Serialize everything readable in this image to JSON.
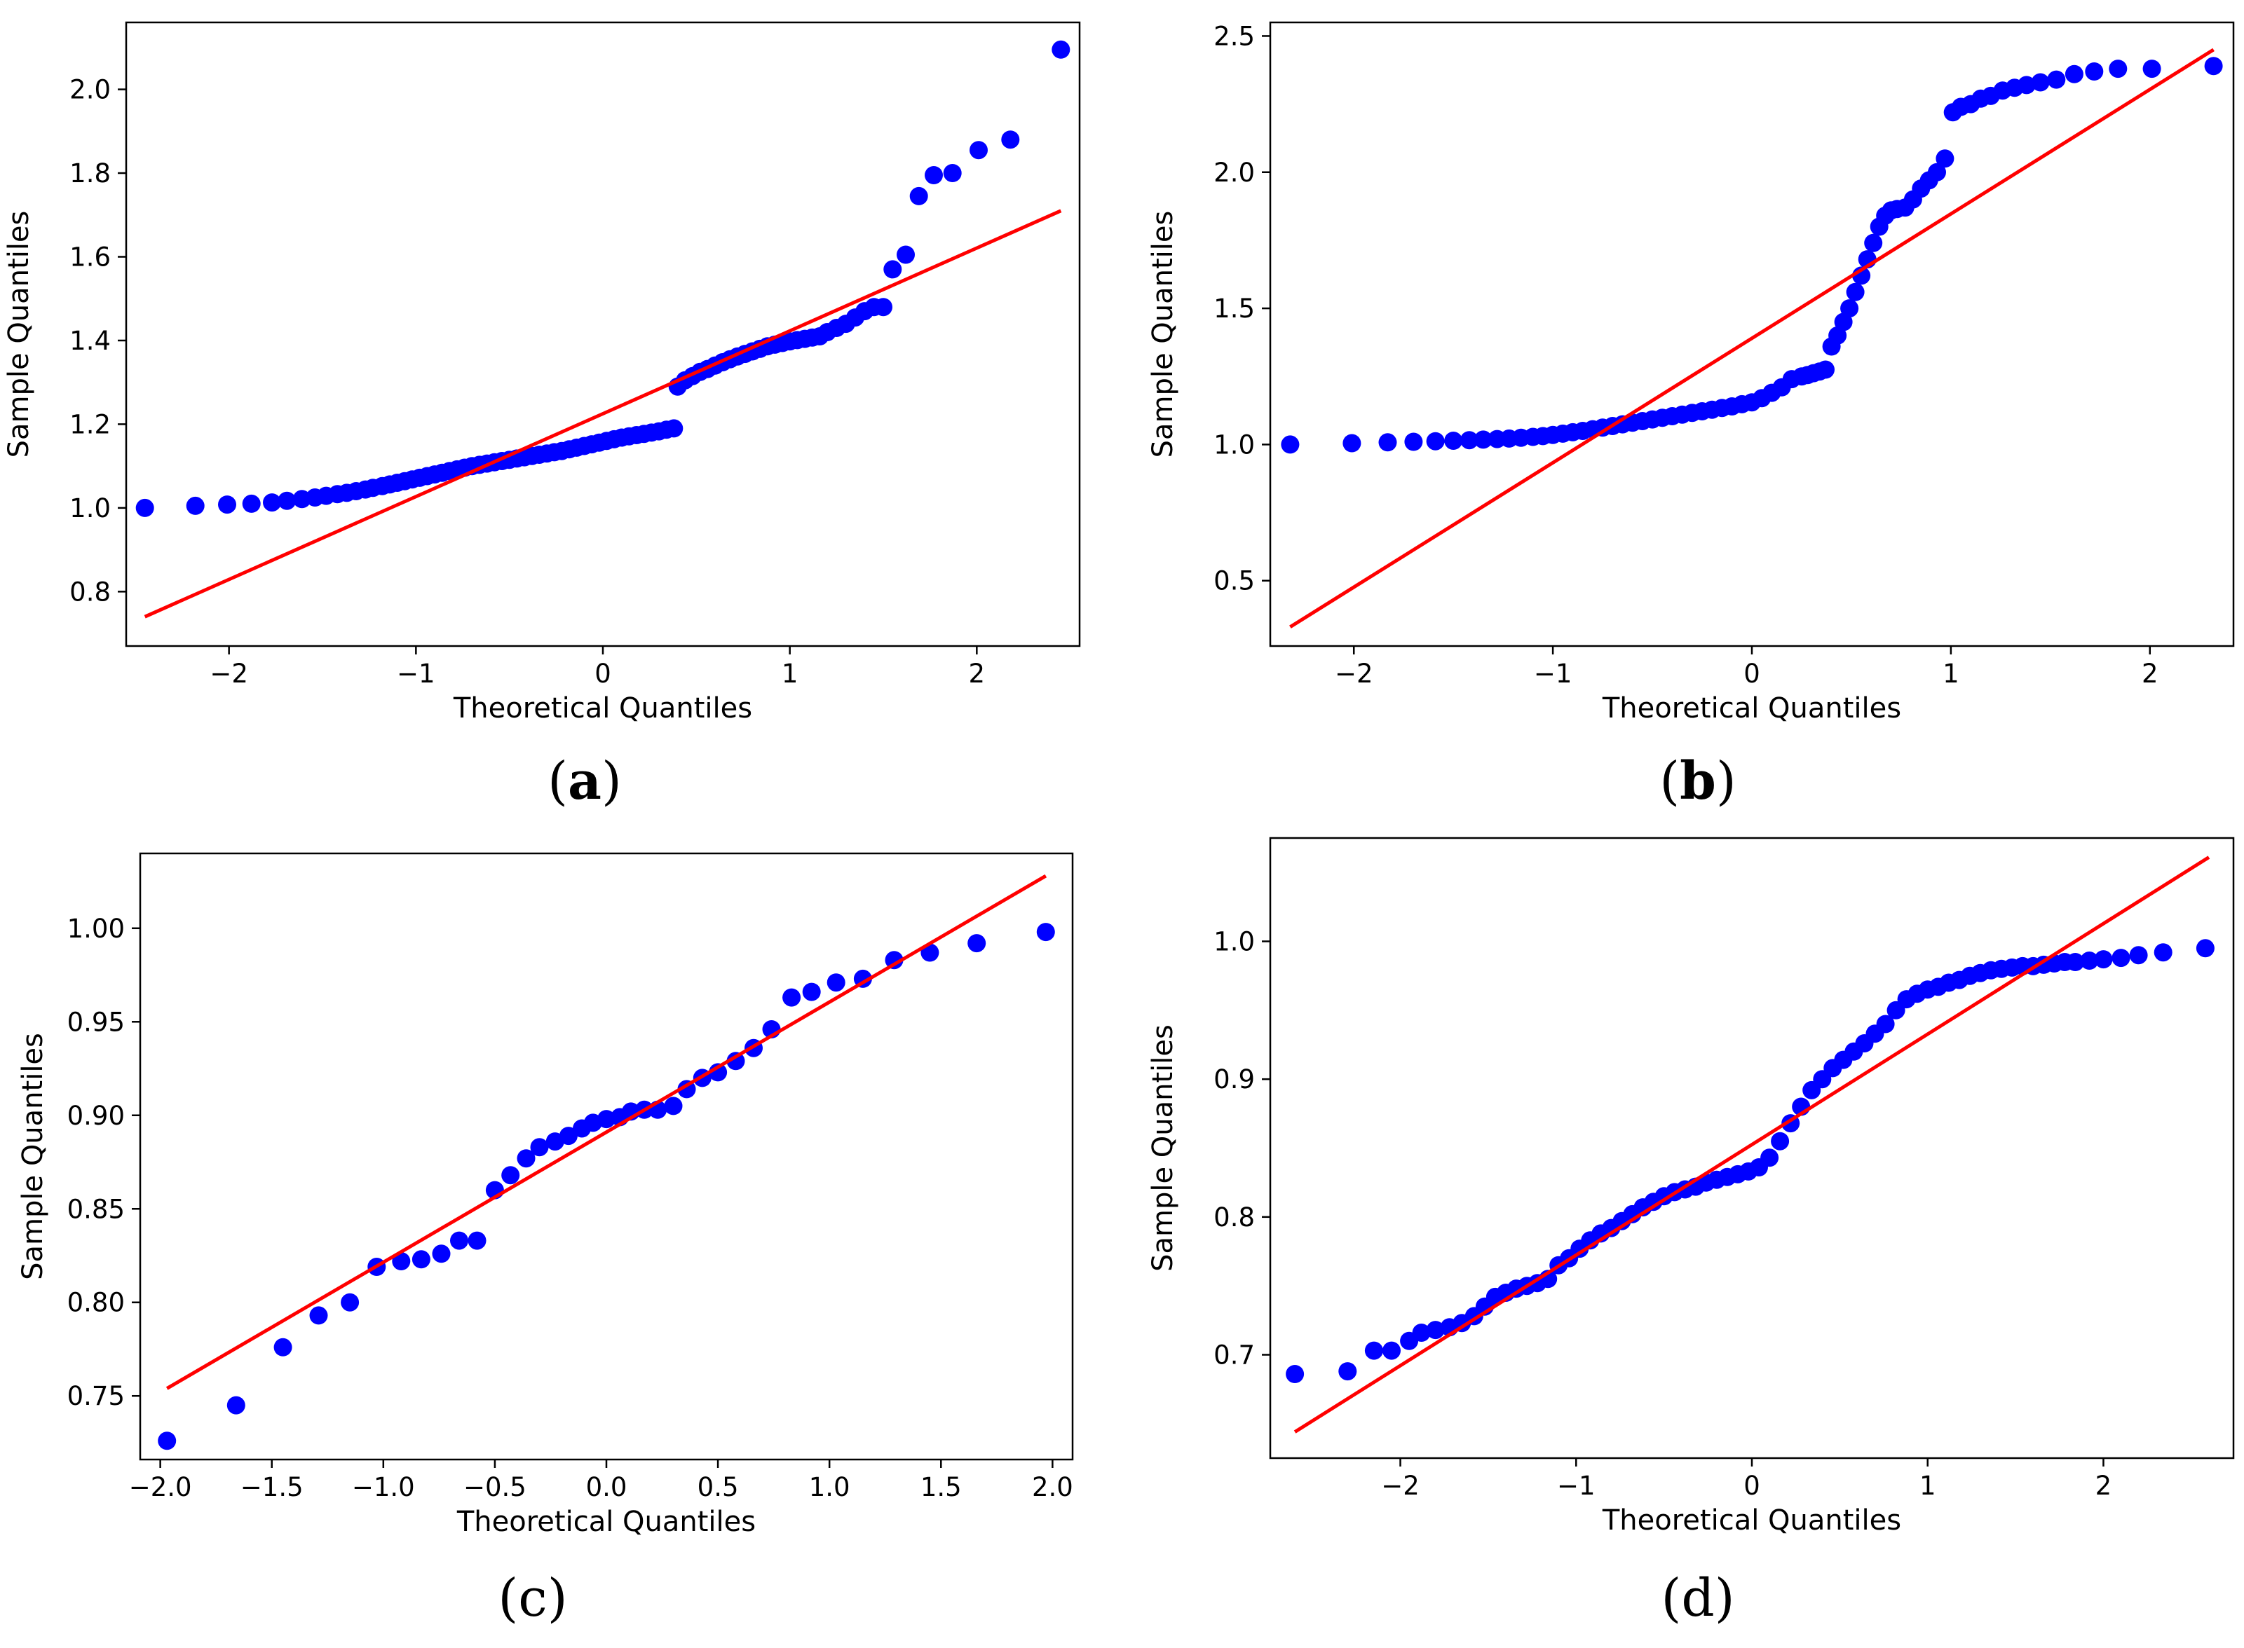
{
  "chart_data": [
    {
      "id": "a",
      "type": "scatter",
      "caption": "a",
      "xlabel": "Theoretical Quantiles",
      "ylabel": "Sample Quantiles",
      "xlim": [
        -2.55,
        2.55
      ],
      "ylim": [
        0.67,
        2.16
      ],
      "xticks": [
        -2,
        -1,
        0,
        1,
        2
      ],
      "xtick_labels": [
        "−2",
        "−1",
        "0",
        "1",
        "2"
      ],
      "yticks": [
        0.8,
        1.0,
        1.2,
        1.4,
        1.6,
        1.8,
        2.0
      ],
      "ytick_labels": [
        "0.8",
        "1.0",
        "1.2",
        "1.4",
        "1.6",
        "1.8",
        "2.0"
      ],
      "marker_color": "#0000ff",
      "line_color": "#ff0000",
      "ref_line": {
        "x": [
          -2.45,
          2.45
        ],
        "y": [
          0.74,
          1.71
        ]
      },
      "series": [
        {
          "name": "sample",
          "x": [
            -2.45,
            -2.18,
            -2.01,
            -1.88,
            -1.77,
            -1.69,
            -1.61,
            -1.54,
            -1.48,
            -1.42,
            -1.37,
            -1.32,
            -1.27,
            -1.23,
            -1.18,
            -1.14,
            -1.1,
            -1.06,
            -1.02,
            -0.98,
            -0.94,
            -0.9,
            -0.86,
            -0.82,
            -0.78,
            -0.74,
            -0.7,
            -0.66,
            -0.62,
            -0.58,
            -0.54,
            -0.5,
            -0.46,
            -0.42,
            -0.38,
            -0.34,
            -0.3,
            -0.26,
            -0.22,
            -0.18,
            -0.14,
            -0.1,
            -0.06,
            -0.02,
            0.02,
            0.06,
            0.1,
            0.14,
            0.18,
            0.22,
            0.26,
            0.3,
            0.34,
            0.38,
            0.4,
            0.44,
            0.48,
            0.52,
            0.56,
            0.6,
            0.64,
            0.68,
            0.72,
            0.76,
            0.8,
            0.84,
            0.88,
            0.92,
            0.96,
            1.0,
            1.04,
            1.08,
            1.12,
            1.16,
            1.2,
            1.25,
            1.3,
            1.35,
            1.4,
            1.45,
            1.5,
            1.55,
            1.62,
            1.69,
            1.77,
            1.87,
            2.01,
            2.18,
            2.45
          ],
          "y": [
            1.0,
            1.005,
            1.008,
            1.01,
            1.013,
            1.017,
            1.021,
            1.025,
            1.029,
            1.033,
            1.036,
            1.04,
            1.044,
            1.048,
            1.052,
            1.056,
            1.06,
            1.064,
            1.068,
            1.072,
            1.076,
            1.08,
            1.084,
            1.088,
            1.092,
            1.096,
            1.1,
            1.103,
            1.106,
            1.109,
            1.112,
            1.115,
            1.118,
            1.121,
            1.124,
            1.127,
            1.13,
            1.133,
            1.136,
            1.14,
            1.144,
            1.148,
            1.152,
            1.156,
            1.16,
            1.164,
            1.168,
            1.171,
            1.174,
            1.177,
            1.18,
            1.183,
            1.187,
            1.19,
            1.29,
            1.305,
            1.315,
            1.325,
            1.332,
            1.34,
            1.348,
            1.355,
            1.362,
            1.368,
            1.374,
            1.38,
            1.386,
            1.39,
            1.394,
            1.398,
            1.401,
            1.404,
            1.407,
            1.41,
            1.42,
            1.43,
            1.44,
            1.455,
            1.47,
            1.48,
            1.48,
            1.57,
            1.605,
            1.745,
            1.795,
            1.8,
            1.855,
            1.88,
            2.095
          ]
        }
      ]
    },
    {
      "id": "b",
      "type": "scatter",
      "caption": "b",
      "xlabel": "Theoretical Quantiles",
      "ylabel": "Sample Quantiles",
      "xlim": [
        -2.42,
        2.42
      ],
      "ylim": [
        0.26,
        2.55
      ],
      "xticks": [
        -2,
        -1,
        0,
        1,
        2
      ],
      "xtick_labels": [
        "−2",
        "−1",
        "0",
        "1",
        "2"
      ],
      "yticks": [
        0.5,
        1.0,
        1.5,
        2.0,
        2.5
      ],
      "ytick_labels": [
        "0.5",
        "1.0",
        "1.5",
        "2.0",
        "2.5"
      ],
      "marker_color": "#0000ff",
      "line_color": "#ff0000",
      "ref_line": {
        "x": [
          -2.32,
          2.32
        ],
        "y": [
          0.33,
          2.45
        ]
      },
      "series": [
        {
          "name": "sample",
          "x": [
            -2.32,
            -2.01,
            -1.83,
            -1.7,
            -1.59,
            -1.5,
            -1.42,
            -1.35,
            -1.28,
            -1.22,
            -1.16,
            -1.1,
            -1.05,
            -1.0,
            -0.95,
            -0.9,
            -0.85,
            -0.8,
            -0.75,
            -0.7,
            -0.65,
            -0.6,
            -0.55,
            -0.5,
            -0.45,
            -0.4,
            -0.35,
            -0.3,
            -0.25,
            -0.2,
            -0.15,
            -0.1,
            -0.05,
            0.0,
            0.05,
            0.1,
            0.15,
            0.2,
            0.25,
            0.28,
            0.31,
            0.34,
            0.37,
            0.4,
            0.43,
            0.46,
            0.49,
            0.52,
            0.55,
            0.58,
            0.61,
            0.64,
            0.67,
            0.7,
            0.73,
            0.77,
            0.81,
            0.85,
            0.89,
            0.93,
            0.97,
            1.01,
            1.05,
            1.1,
            1.15,
            1.2,
            1.26,
            1.32,
            1.38,
            1.45,
            1.53,
            1.62,
            1.72,
            1.84,
            2.01,
            2.32
          ],
          "y": [
            1.0,
            1.005,
            1.008,
            1.01,
            1.012,
            1.014,
            1.016,
            1.018,
            1.02,
            1.022,
            1.025,
            1.028,
            1.031,
            1.035,
            1.04,
            1.045,
            1.05,
            1.056,
            1.062,
            1.068,
            1.074,
            1.08,
            1.086,
            1.092,
            1.098,
            1.104,
            1.11,
            1.116,
            1.122,
            1.128,
            1.134,
            1.14,
            1.148,
            1.155,
            1.17,
            1.19,
            1.21,
            1.24,
            1.25,
            1.255,
            1.262,
            1.268,
            1.275,
            1.36,
            1.4,
            1.45,
            1.5,
            1.56,
            1.62,
            1.68,
            1.74,
            1.8,
            1.84,
            1.86,
            1.865,
            1.87,
            1.9,
            1.94,
            1.97,
            2.0,
            2.05,
            2.22,
            2.24,
            2.25,
            2.27,
            2.28,
            2.3,
            2.31,
            2.32,
            2.33,
            2.34,
            2.36,
            2.37,
            2.38,
            2.38,
            2.39
          ]
        }
      ]
    },
    {
      "id": "c",
      "type": "scatter",
      "caption": "c",
      "xlabel": "Theoretical Quantiles",
      "ylabel": "Sample Quantiles",
      "xlim": [
        -2.09,
        2.09
      ],
      "ylim": [
        0.716,
        1.04
      ],
      "xticks": [
        -2.0,
        -1.5,
        -1.0,
        -0.5,
        0.0,
        0.5,
        1.0,
        1.5,
        2.0
      ],
      "xtick_labels": [
        "−2.0",
        "−1.5",
        "−1.0",
        "−0.5",
        "0.0",
        "0.5",
        "1.0",
        "1.5",
        "2.0"
      ],
      "yticks": [
        0.75,
        0.8,
        0.85,
        0.9,
        0.95,
        1.0
      ],
      "ytick_labels": [
        "0.75",
        "0.80",
        "0.85",
        "0.90",
        "0.95",
        "1.00"
      ],
      "marker_color": "#0000ff",
      "line_color": "#ff0000",
      "ref_line": {
        "x": [
          -1.97,
          1.97
        ],
        "y": [
          0.754,
          1.028
        ]
      },
      "series": [
        {
          "name": "sample",
          "x": [
            -1.97,
            -1.66,
            -1.45,
            -1.29,
            -1.15,
            -1.03,
            -0.92,
            -0.83,
            -0.74,
            -0.66,
            -0.58,
            -0.5,
            -0.43,
            -0.36,
            -0.3,
            -0.23,
            -0.17,
            -0.11,
            -0.06,
            0.0,
            0.06,
            0.11,
            0.17,
            0.23,
            0.3,
            0.36,
            0.43,
            0.5,
            0.58,
            0.66,
            0.74,
            0.83,
            0.92,
            1.03,
            1.15,
            1.29,
            1.45,
            1.66,
            1.97
          ],
          "y": [
            0.726,
            0.745,
            0.776,
            0.793,
            0.8,
            0.819,
            0.822,
            0.823,
            0.826,
            0.833,
            0.833,
            0.86,
            0.868,
            0.877,
            0.883,
            0.886,
            0.889,
            0.893,
            0.896,
            0.898,
            0.899,
            0.902,
            0.903,
            0.903,
            0.905,
            0.914,
            0.92,
            0.923,
            0.929,
            0.936,
            0.946,
            0.963,
            0.966,
            0.971,
            0.973,
            0.983,
            0.987,
            0.992,
            0.998
          ]
        }
      ]
    },
    {
      "id": "d",
      "type": "scatter",
      "caption": "d",
      "xlabel": "Theoretical Quantiles",
      "ylabel": "Sample Quantiles",
      "xlim": [
        -2.74,
        2.74
      ],
      "ylim": [
        0.625,
        1.075
      ],
      "xticks": [
        -2,
        -1,
        0,
        1,
        2
      ],
      "xtick_labels": [
        "−2",
        "−1",
        "0",
        "1",
        "2"
      ],
      "yticks": [
        0.7,
        0.8,
        0.9,
        1.0
      ],
      "ytick_labels": [
        "0.7",
        "0.8",
        "0.9",
        "1.0"
      ],
      "marker_color": "#0000ff",
      "line_color": "#ff0000",
      "ref_line": {
        "x": [
          -2.6,
          2.6
        ],
        "y": [
          0.644,
          1.061
        ]
      },
      "series": [
        {
          "name": "sample",
          "x": [
            -2.6,
            -2.3,
            -2.15,
            -2.05,
            -1.95,
            -1.88,
            -1.8,
            -1.72,
            -1.65,
            -1.58,
            -1.52,
            -1.46,
            -1.4,
            -1.34,
            -1.28,
            -1.22,
            -1.16,
            -1.1,
            -1.04,
            -0.98,
            -0.92,
            -0.86,
            -0.8,
            -0.74,
            -0.68,
            -0.62,
            -0.56,
            -0.5,
            -0.44,
            -0.38,
            -0.32,
            -0.26,
            -0.2,
            -0.14,
            -0.08,
            -0.02,
            0.04,
            0.1,
            0.16,
            0.22,
            0.28,
            0.34,
            0.4,
            0.46,
            0.52,
            0.58,
            0.64,
            0.7,
            0.76,
            0.82,
            0.88,
            0.94,
            1.0,
            1.06,
            1.12,
            1.18,
            1.24,
            1.3,
            1.36,
            1.42,
            1.48,
            1.54,
            1.6,
            1.66,
            1.72,
            1.78,
            1.84,
            1.92,
            2.0,
            2.1,
            2.2,
            2.34,
            2.58
          ],
          "y": [
            0.686,
            0.688,
            0.703,
            0.703,
            0.71,
            0.716,
            0.718,
            0.72,
            0.723,
            0.728,
            0.735,
            0.742,
            0.745,
            0.748,
            0.75,
            0.752,
            0.755,
            0.765,
            0.77,
            0.777,
            0.783,
            0.788,
            0.792,
            0.797,
            0.802,
            0.807,
            0.811,
            0.815,
            0.818,
            0.82,
            0.822,
            0.825,
            0.827,
            0.829,
            0.831,
            0.833,
            0.836,
            0.843,
            0.855,
            0.868,
            0.88,
            0.892,
            0.9,
            0.908,
            0.914,
            0.92,
            0.926,
            0.933,
            0.94,
            0.95,
            0.958,
            0.962,
            0.965,
            0.967,
            0.97,
            0.972,
            0.975,
            0.977,
            0.979,
            0.98,
            0.981,
            0.982,
            0.982,
            0.983,
            0.984,
            0.985,
            0.985,
            0.986,
            0.987,
            0.988,
            0.99,
            0.992,
            0.995
          ]
        }
      ]
    }
  ]
}
